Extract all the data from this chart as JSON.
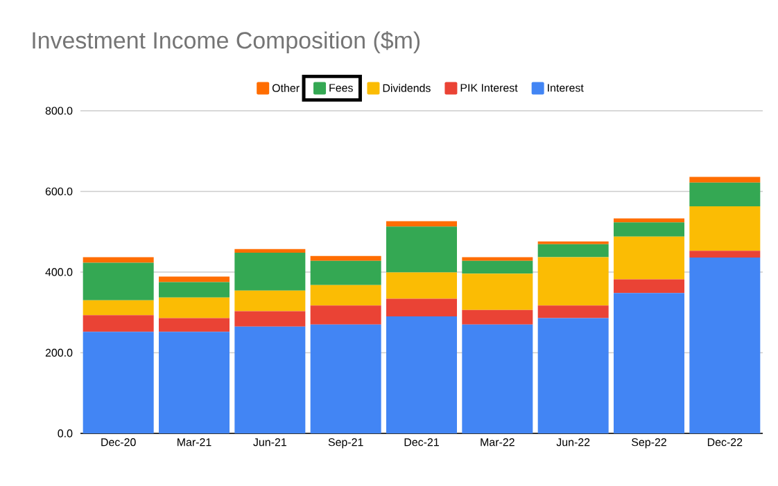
{
  "chart_data": {
    "type": "bar",
    "title": "Investment Income Composition ($m)",
    "categories": [
      "Dec-20",
      "Mar-21",
      "Jun-21",
      "Sep-21",
      "Dec-21",
      "Mar-22",
      "Jun-22",
      "Sep-22",
      "Dec-22"
    ],
    "stacked": true,
    "series": [
      {
        "name": "Interest",
        "color": "#4285f4",
        "values": [
          252,
          252,
          265,
          270,
          290,
          270,
          286,
          348,
          436
        ]
      },
      {
        "name": "PIK Interest",
        "color": "#ea4335",
        "values": [
          41,
          34,
          38,
          47,
          44,
          36,
          31,
          34,
          17
        ]
      },
      {
        "name": "Dividends",
        "color": "#fbbc04",
        "values": [
          37,
          51,
          51,
          51,
          65,
          90,
          120,
          106,
          110
        ]
      },
      {
        "name": "Fees",
        "color": "#34a853",
        "values": [
          93,
          38,
          94,
          60,
          114,
          32,
          32,
          35,
          59
        ]
      },
      {
        "name": "Other",
        "color": "#ff6d01",
        "values": [
          14,
          14,
          9,
          12,
          13,
          9,
          7,
          10,
          14
        ]
      }
    ],
    "ylim": [
      0,
      800
    ],
    "yticks": [
      {
        "value": 0,
        "label": "0.0"
      },
      {
        "value": 200,
        "label": "200.0"
      },
      {
        "value": 400,
        "label": "400.0"
      },
      {
        "value": 600,
        "label": "600.0"
      },
      {
        "value": 800,
        "label": "800.0"
      }
    ],
    "grid": "y",
    "legend": "top"
  }
}
